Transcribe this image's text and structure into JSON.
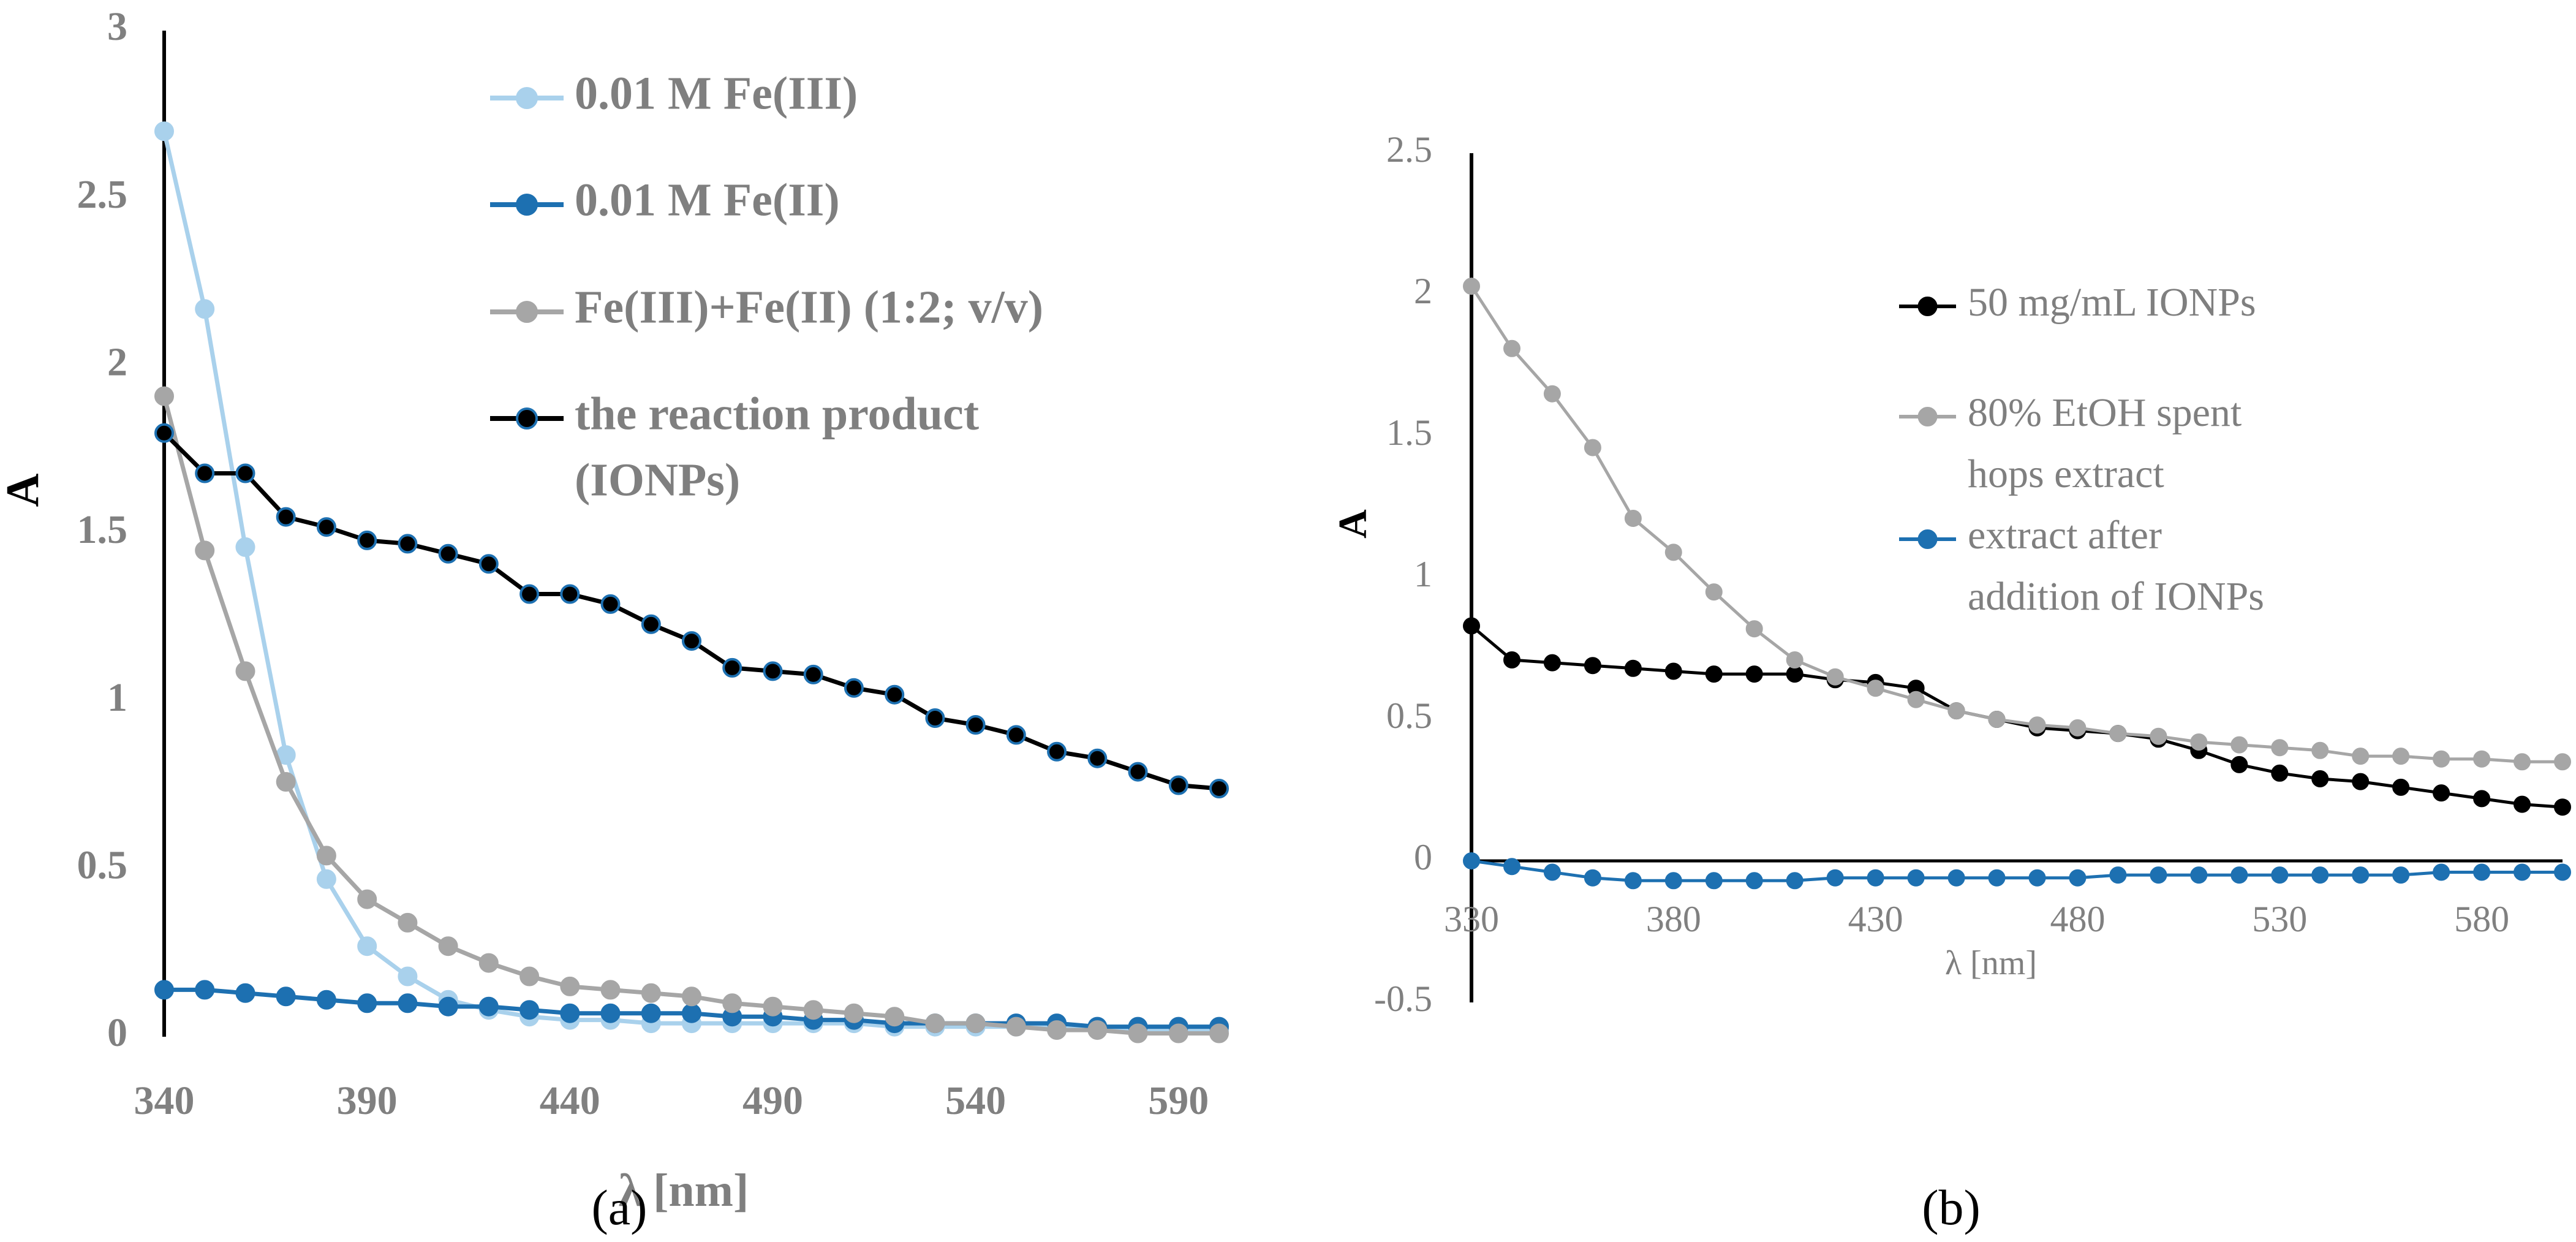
{
  "chart_data": [
    {
      "type": "line",
      "caption": "(a)",
      "title": "",
      "xlabel": "λ [nm]",
      "ylabel": "A",
      "xlim": [
        340,
        600
      ],
      "ylim": [
        0,
        3
      ],
      "xticks": [
        340,
        390,
        440,
        490,
        540,
        590
      ],
      "yticks": [
        0,
        0.5,
        1,
        1.5,
        2,
        2.5,
        3
      ],
      "ytick_labels": [
        "0",
        "0.5",
        "1",
        "1.5",
        "2",
        "2.5",
        "3"
      ],
      "legend_position": "top-right",
      "x": [
        340,
        350,
        360,
        370,
        380,
        390,
        400,
        410,
        420,
        430,
        440,
        450,
        460,
        470,
        480,
        490,
        500,
        510,
        520,
        530,
        540,
        550,
        560,
        570,
        580,
        590,
        600
      ],
      "series": [
        {
          "name": "0.01 M Fe(III)",
          "color": "#a9d1ec",
          "marker_edge": "#a9d1ec",
          "values": [
            2.7,
            2.17,
            1.46,
            0.84,
            0.47,
            0.27,
            0.18,
            0.11,
            0.08,
            0.06,
            0.05,
            0.05,
            0.04,
            0.04,
            0.04,
            0.04,
            0.04,
            0.04,
            0.03,
            0.03,
            0.03,
            0.03,
            0.03,
            0.03,
            0.02,
            0.02,
            0.02
          ]
        },
        {
          "name": "0.01 M Fe(II)",
          "color": "#1d70b1",
          "marker_edge": "#1d70b1",
          "values": [
            0.14,
            0.14,
            0.13,
            0.12,
            0.11,
            0.1,
            0.1,
            0.09,
            0.09,
            0.08,
            0.07,
            0.07,
            0.07,
            0.07,
            0.06,
            0.06,
            0.05,
            0.05,
            0.04,
            0.04,
            0.04,
            0.04,
            0.04,
            0.03,
            0.03,
            0.03,
            0.03
          ]
        },
        {
          "name": "Fe(III)+Fe(II) (1:2; v/v)",
          "color": "#a6a6a6",
          "marker_edge": "#a6a6a6",
          "values": [
            1.91,
            1.45,
            1.09,
            0.76,
            0.54,
            0.41,
            0.34,
            0.27,
            0.22,
            0.18,
            0.15,
            0.14,
            0.13,
            0.12,
            0.1,
            0.09,
            0.08,
            0.07,
            0.06,
            0.04,
            0.04,
            0.03,
            0.02,
            0.02,
            0.01,
            0.01,
            0.01
          ]
        },
        {
          "name": "the reaction product (IONPs)",
          "legend_lines": [
            "the reaction product",
            "(IONPs)"
          ],
          "color": "#000000",
          "marker_edge": "#1d70b1",
          "values": [
            1.8,
            1.68,
            1.68,
            1.55,
            1.52,
            1.48,
            1.47,
            1.44,
            1.41,
            1.32,
            1.32,
            1.29,
            1.23,
            1.18,
            1.1,
            1.09,
            1.08,
            1.04,
            1.02,
            0.95,
            0.93,
            0.9,
            0.85,
            0.83,
            0.79,
            0.75,
            0.74
          ]
        }
      ]
    },
    {
      "type": "line",
      "caption": "(b)",
      "title": "",
      "xlabel": "λ [nm]",
      "ylabel": "A",
      "xlim": [
        330,
        600
      ],
      "ylim": [
        -0.5,
        2.5
      ],
      "xticks": [
        330,
        380,
        430,
        480,
        530,
        580
      ],
      "yticks": [
        -0.5,
        0,
        0.5,
        1,
        1.5,
        2,
        2.5
      ],
      "ytick_labels": [
        "-0.5",
        "0",
        "0.5",
        "1",
        "1.5",
        "2",
        "2.5"
      ],
      "legend_position": "right",
      "x": [
        330,
        340,
        350,
        360,
        370,
        380,
        390,
        400,
        410,
        420,
        430,
        440,
        450,
        460,
        470,
        480,
        490,
        500,
        510,
        520,
        530,
        540,
        550,
        560,
        570,
        580,
        590,
        600
      ],
      "series": [
        {
          "name": "50 mg/mL IONPs",
          "color": "#000000",
          "marker_edge": "#000000",
          "values": [
            0.83,
            0.71,
            0.7,
            0.69,
            0.68,
            0.67,
            0.66,
            0.66,
            0.66,
            0.64,
            0.63,
            0.61,
            0.53,
            0.5,
            0.47,
            0.46,
            0.45,
            0.43,
            0.39,
            0.34,
            0.31,
            0.29,
            0.28,
            0.26,
            0.24,
            0.22,
            0.2,
            0.19
          ]
        },
        {
          "name": "80% EtOH spent hops extract",
          "legend_lines": [
            "80% EtOH spent",
            "hops extract"
          ],
          "color": "#a6a6a6",
          "marker_edge": "#a6a6a6",
          "values": [
            2.03,
            1.81,
            1.65,
            1.46,
            1.21,
            1.09,
            0.95,
            0.82,
            0.71,
            0.65,
            0.61,
            0.57,
            0.53,
            0.5,
            0.48,
            0.47,
            0.45,
            0.44,
            0.42,
            0.41,
            0.4,
            0.39,
            0.37,
            0.37,
            0.36,
            0.36,
            0.35,
            0.35
          ]
        },
        {
          "name": "extract after addition of IONPs",
          "legend_lines": [
            "extract after",
            "addition of IONPs"
          ],
          "color": "#1d70b1",
          "marker_edge": "#1d70b1",
          "values": [
            0.0,
            -0.02,
            -0.04,
            -0.06,
            -0.07,
            -0.07,
            -0.07,
            -0.07,
            -0.07,
            -0.06,
            -0.06,
            -0.06,
            -0.06,
            -0.06,
            -0.06,
            -0.06,
            -0.05,
            -0.05,
            -0.05,
            -0.05,
            -0.05,
            -0.05,
            -0.05,
            -0.05,
            -0.04,
            -0.04,
            -0.04,
            -0.04
          ]
        }
      ]
    }
  ]
}
